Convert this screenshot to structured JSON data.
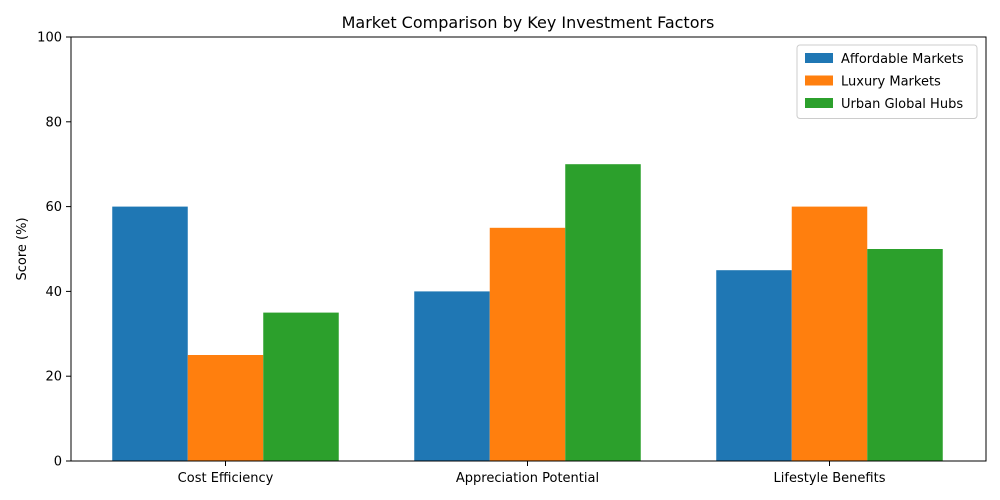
{
  "chart_data": {
    "type": "bar",
    "title": "Market Comparison by Key Investment Factors",
    "xlabel": "",
    "ylabel": "Score (%)",
    "ylim": [
      0,
      100
    ],
    "yticks": [
      0,
      20,
      40,
      60,
      80,
      100
    ],
    "categories": [
      "Cost Efficiency",
      "Appreciation Potential",
      "Lifestyle Benefits"
    ],
    "series": [
      {
        "name": "Affordable Markets",
        "values": [
          60,
          40,
          45
        ],
        "color": "#1f77b4"
      },
      {
        "name": "Luxury Markets",
        "values": [
          25,
          55,
          60
        ],
        "color": "#ff7f0e"
      },
      {
        "name": "Urban Global Hubs",
        "values": [
          35,
          70,
          50
        ],
        "color": "#2ca02c"
      }
    ],
    "grid": false,
    "legend_position": "top-right"
  }
}
